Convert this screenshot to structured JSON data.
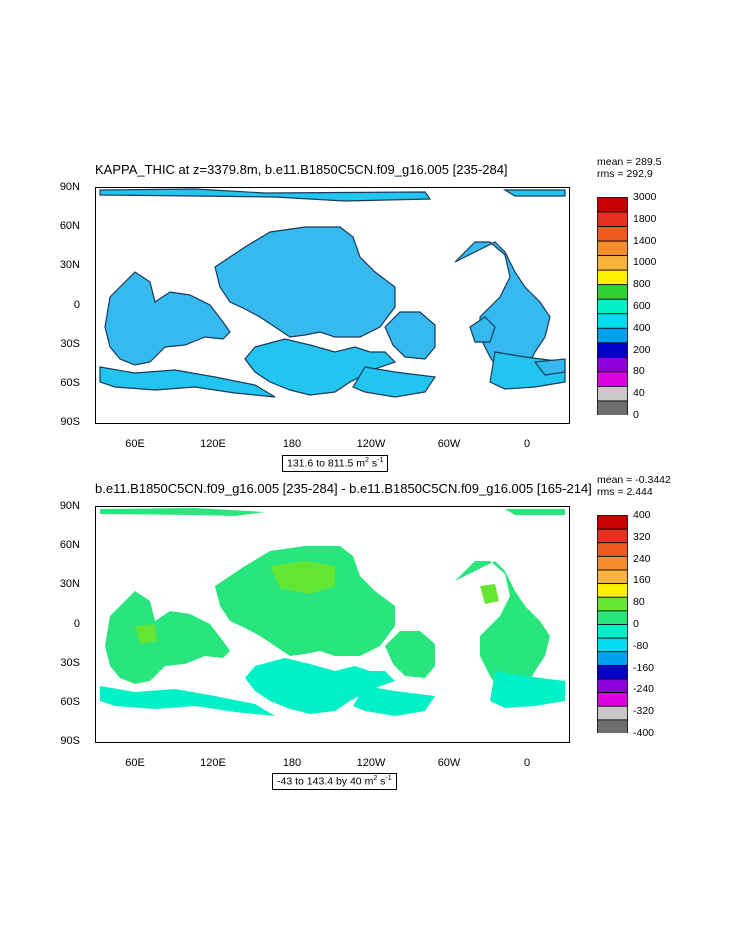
{
  "panels": [
    {
      "title": "KAPPA_THIC at z=3379.8m, b.e11.B1850C5CN.f09_g16.005 [235-284]",
      "mean": "mean = 289.5",
      "rms": "rms = 292.9",
      "range_text": "131.6 to 811.5",
      "units": "m",
      "units_exp1": "2",
      "units_s": " s",
      "units_exp2": "-1",
      "colorbar_labels": [
        "3000",
        "1800",
        "1400",
        "1000",
        "800",
        "600",
        "400",
        "200",
        "80",
        "40",
        "0"
      ],
      "colorbar_colors": [
        "#c80000",
        "#e83020",
        "#f05a1e",
        "#f58c2d",
        "#fab43c",
        "#fff000",
        "#32d232",
        "#00f0c8",
        "#00dcf0",
        "#00a0f0",
        "#0000c8",
        "#8c00dc",
        "#dc00dc",
        "#c8c8c8",
        "#6e6e6e"
      ]
    },
    {
      "title": "b.e11.B1850C5CN.f09_g16.005 [235-284] - b.e11.B1850C5CN.f09_g16.005 [165-214]",
      "mean": "mean = -0.3442",
      "rms": "rms = 2.444",
      "range_text": "-43 to 143.4 by 40",
      "units": "m",
      "units_exp1": "2",
      "units_s": " s",
      "units_exp2": "-1",
      "colorbar_labels": [
        "400",
        "320",
        "240",
        "160",
        "80",
        "0",
        "-80",
        "-160",
        "-240",
        "-320",
        "-400"
      ],
      "colorbar_colors": [
        "#c80000",
        "#e83020",
        "#f05a1e",
        "#f58c2d",
        "#fab43c",
        "#fff000",
        "#64e632",
        "#28e67d",
        "#00f0c8",
        "#00dcf0",
        "#00a0f0",
        "#0000c8",
        "#8c00dc",
        "#dc00dc",
        "#c8c8c8",
        "#6e6e6e"
      ]
    }
  ],
  "lat_ticks": [
    "90N",
    "60N",
    "30N",
    "0",
    "30S",
    "60S",
    "90S"
  ],
  "lon_ticks": [
    "60E",
    "120E",
    "180",
    "120W",
    "60W",
    "0"
  ]
}
